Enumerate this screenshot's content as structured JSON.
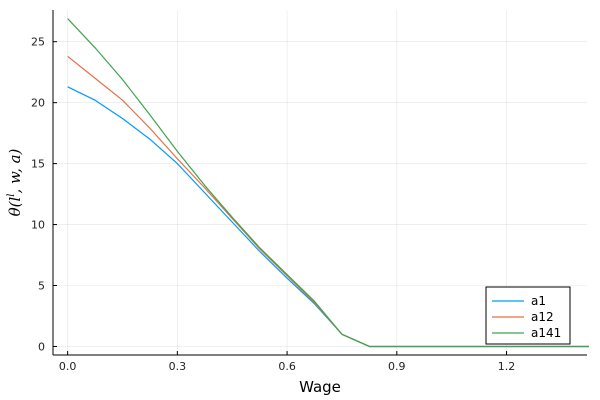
{
  "chart_data": {
    "type": "line",
    "title": "",
    "xlabel": "Wage",
    "ylabel": "θ(l, w, a)",
    "ylabel_sup": "l",
    "xlim": [
      -0.04,
      1.42
    ],
    "ylim": [
      -0.7,
      27.6
    ],
    "xticks": [
      0.0,
      0.3,
      0.6,
      0.9,
      1.2
    ],
    "xtick_labels": [
      "0.0",
      "0.3",
      "0.6",
      "0.9",
      "1.2"
    ],
    "yticks": [
      0,
      5,
      10,
      15,
      20,
      25
    ],
    "ytick_labels": [
      "0",
      "5",
      "10",
      "15",
      "20",
      "25"
    ],
    "grid": true,
    "legend_position": "bottom-right",
    "x": [
      0.0,
      0.075,
      0.15,
      0.225,
      0.3,
      0.375,
      0.45,
      0.525,
      0.6,
      0.675,
      0.75,
      0.825,
      0.9,
      0.975,
      1.05,
      1.125,
      1.2,
      1.275,
      1.35,
      1.425
    ],
    "series": [
      {
        "name": "a1",
        "color": "#009AFA",
        "values": [
          21.3,
          20.2,
          18.7,
          17.0,
          15.0,
          12.6,
          10.2,
          7.8,
          5.6,
          3.5,
          1.0,
          0.0,
          0.0,
          0.0,
          0.0,
          0.0,
          0.0,
          0.0,
          0.0,
          0.0
        ]
      },
      {
        "name": "a12",
        "color": "#E36F47",
        "values": [
          23.8,
          22.0,
          20.2,
          17.9,
          15.4,
          13.0,
          10.5,
          8.0,
          5.8,
          3.6,
          1.0,
          0.0,
          0.0,
          0.0,
          0.0,
          0.0,
          0.0,
          0.0,
          0.0,
          0.0
        ]
      },
      {
        "name": "a141",
        "color": "#3EA44E",
        "values": [
          26.9,
          24.5,
          21.9,
          19.0,
          16.0,
          13.2,
          10.6,
          8.1,
          5.9,
          3.7,
          1.0,
          0.0,
          0.0,
          0.0,
          0.0,
          0.0,
          0.0,
          0.0,
          0.0,
          0.0
        ]
      }
    ]
  }
}
